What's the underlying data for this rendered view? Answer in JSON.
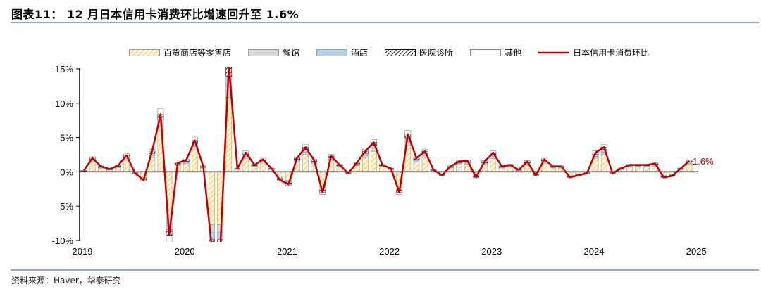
{
  "title": "图表11：  12 月日本信用卡消费环比增速回升至 1.6%",
  "source": "资料来源：Haver，华泰研究",
  "colors": {
    "line": "#c00000",
    "retail": "#f3c46a",
    "restaurant": "#d9d9d9",
    "hotel": "#b9d0ea",
    "medical": "#222222",
    "other": "#ffffff"
  },
  "chart_data": {
    "type": "bar",
    "title": "12 月日本信用卡消费环比增速回升至 1.6%",
    "xlabel": "",
    "ylabel": "",
    "ylim": [
      -10,
      15
    ],
    "yticks": [
      "15%",
      "10%",
      "5%",
      "0%",
      "-5%",
      "-10%"
    ],
    "ytick_values": [
      15,
      10,
      5,
      0,
      -5,
      -10
    ],
    "xticks": [
      "2019",
      "2020",
      "2021",
      "2022",
      "2023",
      "2024",
      "2025"
    ],
    "start": "2019-01",
    "months": 72,
    "annotation": "1.6%",
    "legend_position": "top",
    "series": [
      {
        "name": "百货商店等零售店",
        "kind": "bar",
        "values": [
          0.14,
          1.4,
          0.56,
          0.28,
          0.63,
          1.68,
          -0.14,
          -0.84,
          2.1,
          5.88,
          -6.51,
          0.91,
          1.19,
          3.22,
          0.56,
          -7.7,
          -7.7,
          10.85,
          0.35,
          1.96,
          0.7,
          1.26,
          0.35,
          -0.84,
          -1.26,
          1.4,
          2.52,
          1.19,
          -2.1,
          1.61,
          0.7,
          -0.14,
          0.91,
          2.1,
          3.01,
          0.7,
          0.35,
          -2.1,
          3.85,
          1.4,
          2.1,
          0.21,
          -0.35,
          0.56,
          1.05,
          1.12,
          -0.56,
          1.05,
          1.96,
          0.56,
          0.7,
          0.21,
          1.05,
          -0.35,
          1.26,
          0.56,
          0.56,
          -0.56,
          -0.35,
          -0.14,
          1.96,
          2.52,
          -0.14,
          0.35,
          0.7,
          0.7,
          0.7,
          0.84,
          -0.56,
          -0.42,
          0.35,
          1.12
        ]
      },
      {
        "name": "餐馆",
        "kind": "bar",
        "values": [
          0.02,
          0.2,
          0.08,
          0.04,
          0.09,
          0.24,
          -0.02,
          -0.12,
          0.3,
          0.84,
          -0.93,
          0.13,
          0.17,
          0.46,
          0.08,
          -1.1,
          -1.1,
          1.55,
          0.05,
          0.28,
          0.1,
          0.18,
          0.05,
          -0.12,
          -0.18,
          0.2,
          0.36,
          0.17,
          -0.3,
          0.23,
          0.1,
          -0.02,
          0.13,
          0.3,
          0.43,
          0.1,
          0.05,
          -0.3,
          0.55,
          0.2,
          0.3,
          0.03,
          -0.05,
          0.08,
          0.15,
          0.16,
          -0.08,
          0.15,
          0.28,
          0.08,
          0.1,
          0.03,
          0.15,
          -0.05,
          0.18,
          0.08,
          0.08,
          -0.08,
          -0.05,
          -0.02,
          0.28,
          0.36,
          -0.02,
          0.05,
          0.1,
          0.1,
          0.1,
          0.12,
          -0.08,
          -0.06,
          0.05,
          0.16
        ]
      },
      {
        "name": "酒店",
        "kind": "bar",
        "values": [
          0.02,
          0.2,
          0.08,
          0.04,
          0.09,
          0.24,
          -0.02,
          -0.12,
          0.3,
          0.84,
          -0.93,
          0.13,
          0.17,
          0.46,
          0.08,
          -1.1,
          -1.1,
          1.55,
          0.05,
          0.28,
          0.1,
          0.18,
          0.05,
          -0.12,
          -0.18,
          0.2,
          0.36,
          0.17,
          -0.3,
          0.23,
          0.1,
          -0.02,
          0.13,
          0.3,
          0.43,
          0.1,
          0.05,
          -0.3,
          0.55,
          0.2,
          0.3,
          0.03,
          -0.05,
          0.08,
          0.15,
          0.16,
          -0.08,
          0.15,
          0.28,
          0.08,
          0.1,
          0.03,
          0.15,
          -0.05,
          0.18,
          0.08,
          0.08,
          -0.08,
          -0.05,
          -0.02,
          0.28,
          0.36,
          -0.02,
          0.05,
          0.1,
          0.1,
          0.1,
          0.12,
          -0.08,
          -0.06,
          0.05,
          0.16
        ]
      },
      {
        "name": "医院诊所",
        "kind": "bar",
        "values": [
          0.02,
          0.2,
          0.08,
          0.04,
          0.09,
          0.24,
          -0.02,
          -0.12,
          0.3,
          0.84,
          -0.93,
          0.13,
          0.17,
          0.46,
          0.08,
          -1.1,
          -1.1,
          1.55,
          0.05,
          0.28,
          0.1,
          0.18,
          0.05,
          -0.12,
          -0.18,
          0.2,
          0.36,
          0.17,
          -0.3,
          0.23,
          0.1,
          -0.02,
          0.13,
          0.3,
          0.43,
          0.1,
          0.05,
          -0.3,
          0.55,
          0.2,
          0.3,
          0.03,
          -0.05,
          0.08,
          0.15,
          0.16,
          -0.08,
          0.15,
          0.28,
          0.08,
          0.1,
          0.03,
          0.15,
          -0.05,
          0.18,
          0.08,
          0.08,
          -0.08,
          -0.05,
          -0.02,
          0.28,
          0.36,
          -0.02,
          0.05,
          0.1,
          0.1,
          0.1,
          0.12,
          -0.08,
          -0.06,
          0.05,
          0.16
        ]
      },
      {
        "name": "其他",
        "kind": "bar",
        "values": [
          0.02,
          0.2,
          0.08,
          0.04,
          0.09,
          0.24,
          -0.02,
          -0.12,
          0.3,
          0.84,
          -0.93,
          0.13,
          0.17,
          0.46,
          0.08,
          -1.1,
          -1.1,
          1.55,
          0.05,
          0.28,
          0.1,
          0.18,
          0.05,
          -0.12,
          -0.18,
          0.2,
          0.36,
          0.17,
          -0.3,
          0.23,
          0.1,
          -0.02,
          0.13,
          0.3,
          0.43,
          0.1,
          0.05,
          -0.3,
          0.55,
          0.2,
          0.3,
          0.03,
          -0.05,
          0.08,
          0.15,
          0.16,
          -0.08,
          0.15,
          0.28,
          0.08,
          0.1,
          0.03,
          0.15,
          -0.05,
          0.18,
          0.08,
          0.08,
          -0.08,
          -0.05,
          -0.02,
          0.28,
          0.36,
          -0.02,
          0.05,
          0.1,
          0.1,
          0.1,
          0.12,
          -0.08,
          -0.06,
          0.05,
          0.16
        ]
      },
      {
        "name": "日本信用卡消费环比",
        "kind": "line",
        "values": [
          0.2,
          2.0,
          0.8,
          0.4,
          0.9,
          2.4,
          -0.2,
          -1.2,
          3.0,
          8.4,
          -9.3,
          1.3,
          1.7,
          4.6,
          0.8,
          -11,
          -11,
          15.5,
          0.5,
          2.8,
          1.0,
          1.8,
          0.5,
          -1.2,
          -1.8,
          2.0,
          3.6,
          1.7,
          -3.0,
          2.3,
          1.0,
          -0.2,
          1.3,
          3.0,
          4.3,
          1.0,
          0.5,
          -3.0,
          5.5,
          2.0,
          3.0,
          0.3,
          -0.5,
          0.8,
          1.5,
          1.6,
          -0.8,
          1.5,
          2.8,
          0.8,
          1.0,
          0.3,
          1.5,
          -0.5,
          1.8,
          0.8,
          0.8,
          -0.8,
          -0.5,
          -0.2,
          2.8,
          3.6,
          -0.2,
          0.5,
          1.0,
          1.0,
          1.0,
          1.2,
          -0.8,
          -0.6,
          0.5,
          1.6
        ]
      }
    ]
  }
}
